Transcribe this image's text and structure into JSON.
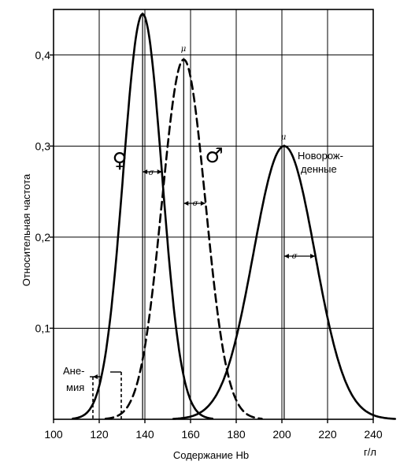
{
  "chart_data": {
    "type": "line",
    "title": "",
    "xlabel": "Содержание Hb",
    "xunit": "г/л",
    "ylabel": "Относительная частота",
    "xlim": [
      100,
      240
    ],
    "ylim": [
      0,
      0.45
    ],
    "xticks": [
      100,
      120,
      140,
      160,
      180,
      200,
      220,
      240
    ],
    "xtick_labels": [
      "100",
      "120",
      "140",
      "160",
      "180",
      "200",
      "220",
      "240"
    ],
    "yticks": [
      0.1,
      0.2,
      0.3,
      0.4
    ],
    "ytick_labels": [
      "0,1",
      "0,2",
      "0,3",
      "0,4"
    ],
    "grid": true,
    "series": [
      {
        "name": "♀",
        "style": "solid",
        "mean": 139,
        "sigma": 8.5,
        "peak": 0.445
      },
      {
        "name": "♂",
        "style": "dashed",
        "mean": 157,
        "sigma": 9.5,
        "peak": 0.395
      },
      {
        "name": "Новорожденные",
        "style": "solid",
        "mean": 201,
        "sigma": 13.5,
        "peak": 0.3
      }
    ],
    "annotations": {
      "female_symbol": "♀",
      "male_symbol": "♂",
      "newborn_line1": "Новорож-",
      "newborn_line2": "денные",
      "anemia_line1": "Ане-",
      "anemia_line2": "мия",
      "mu": "μ",
      "sigma": "σ"
    }
  }
}
